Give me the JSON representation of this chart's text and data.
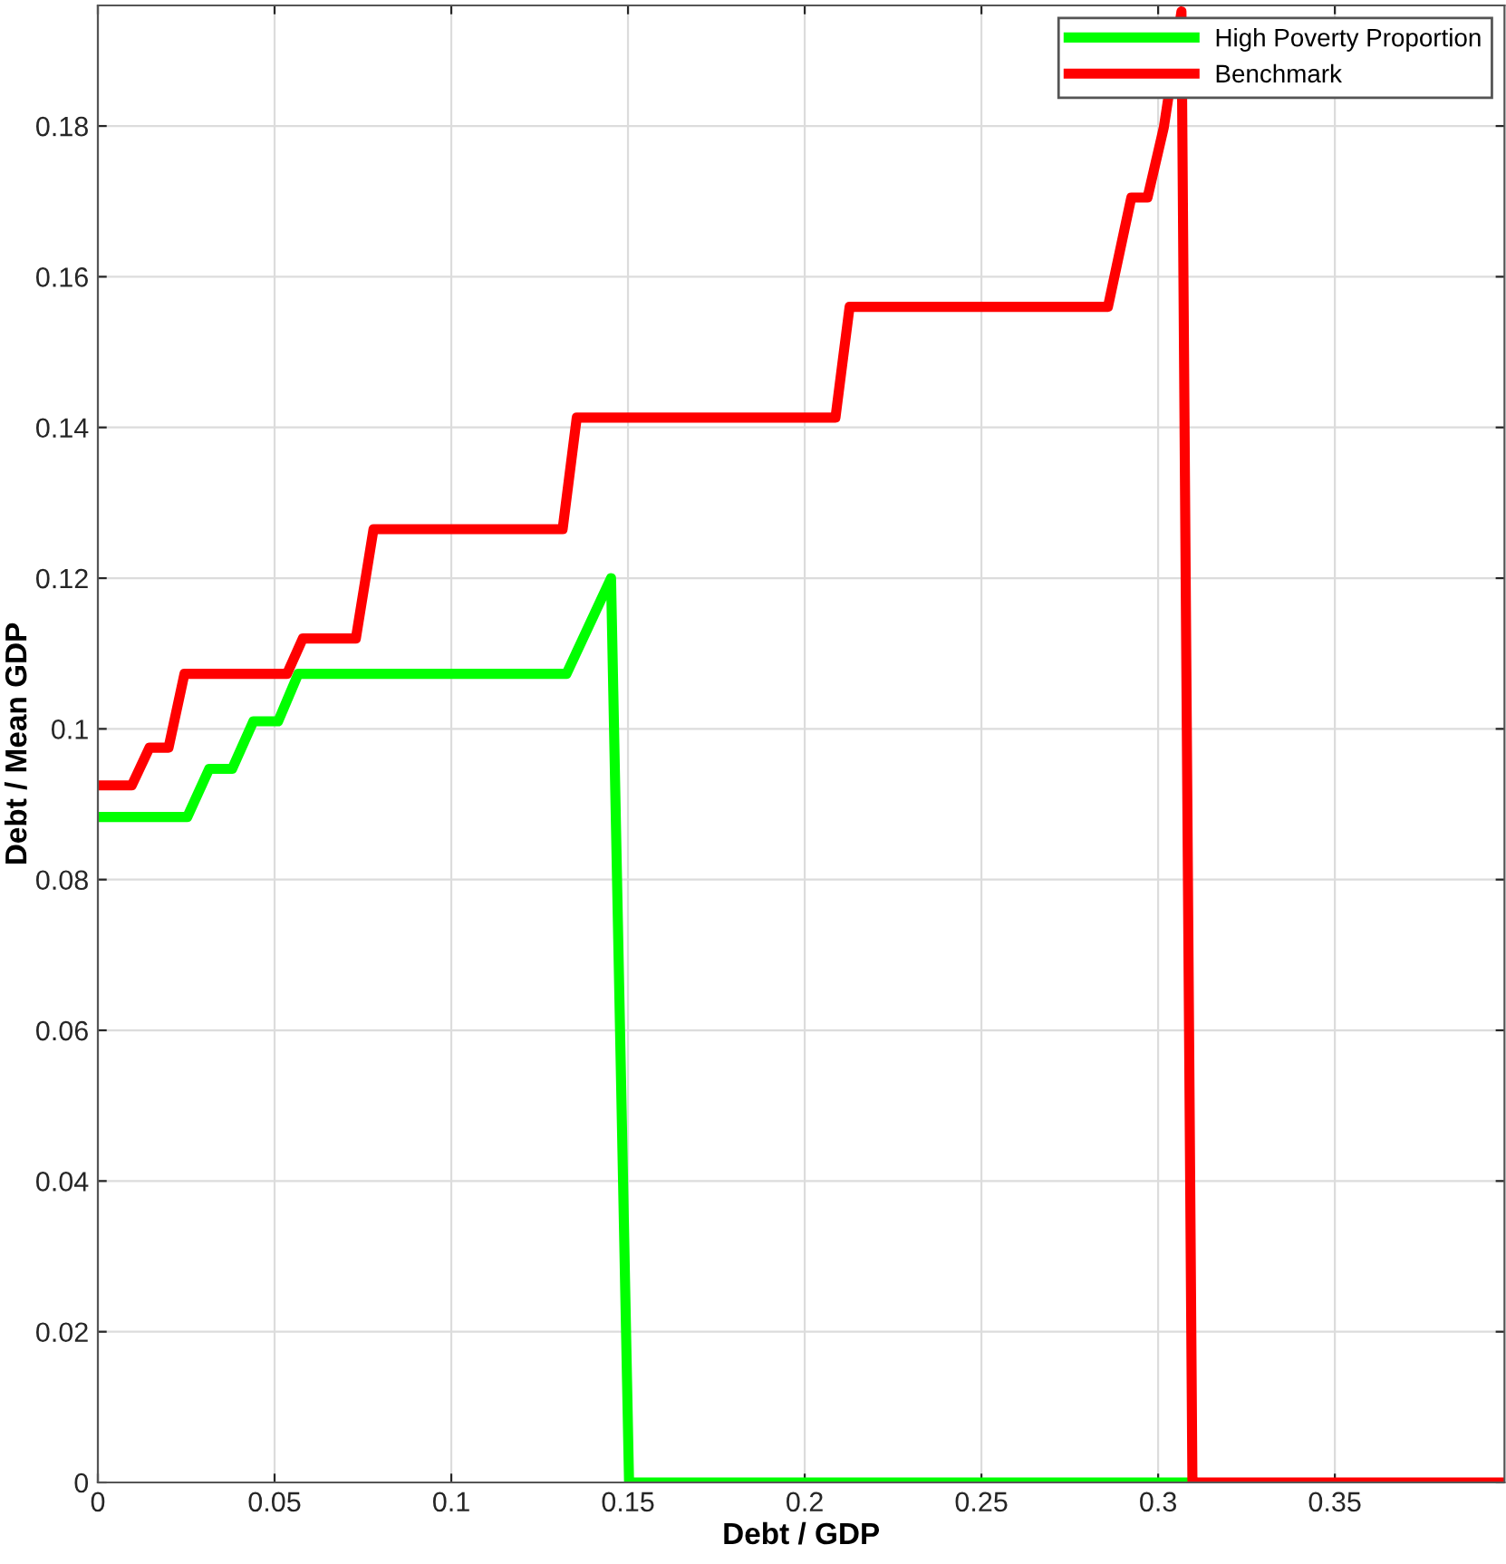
{
  "chart_data": {
    "type": "line",
    "xlabel": "Debt / GDP",
    "ylabel": "Debt / Mean GDP",
    "series": [
      {
        "name": "High Poverty Proportion",
        "color": "#00ff00",
        "x": [
          0,
          0.0253,
          0.0315,
          0.038,
          0.044,
          0.051,
          0.0567,
          0.1326,
          0.1452,
          0.1503,
          0.3097
        ],
        "values": [
          0.0883,
          0.0883,
          0.0947,
          0.0947,
          0.101,
          0.101,
          0.1073,
          0.1073,
          0.12,
          0,
          0
        ]
      },
      {
        "name": "Benchmark",
        "color": "#ff0000",
        "x": [
          0,
          0.0096,
          0.0146,
          0.02,
          0.0245,
          0.0535,
          0.058,
          0.073,
          0.078,
          0.1315,
          0.1355,
          0.2087,
          0.2127,
          0.2858,
          0.2924,
          0.297,
          0.3016,
          0.3066,
          0.3097,
          0.398
        ],
        "values": [
          0.0925,
          0.0925,
          0.0975,
          0.0975,
          0.1073,
          0.1073,
          0.112,
          0.112,
          0.1265,
          0.1265,
          0.1413,
          0.1413,
          0.156,
          0.156,
          0.1705,
          0.1705,
          0.1798,
          0.1952,
          0,
          0
        ]
      }
    ],
    "xlim": [
      0,
      0.398
    ],
    "xticks": [
      0,
      0.05,
      0.1,
      0.15,
      0.2,
      0.25,
      0.3,
      0.35
    ],
    "ylim": [
      0,
      0.196
    ],
    "yticks": [
      0,
      0.02,
      0.04,
      0.06,
      0.08,
      0.1,
      0.12,
      0.14,
      0.16,
      0.18
    ],
    "grid": true,
    "legend": "top right",
    "marker": "none",
    "line_style": "solid"
  }
}
